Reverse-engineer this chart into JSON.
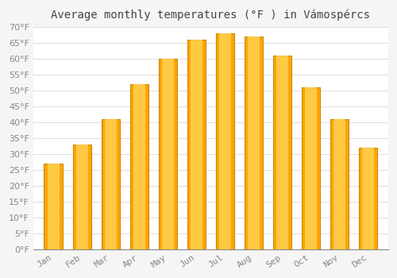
{
  "title": "Average monthly temperatures (°F ) in Vámospércs",
  "months": [
    "Jan",
    "Feb",
    "Mar",
    "Apr",
    "May",
    "Jun",
    "Jul",
    "Aug",
    "Sep",
    "Oct",
    "Nov",
    "Dec"
  ],
  "values": [
    27,
    33,
    41,
    52,
    60,
    66,
    68,
    67,
    61,
    51,
    41,
    32
  ],
  "bar_color_main": "#FFA500",
  "bar_color_light": "#FFD050",
  "bar_edge_color": "#CC8800",
  "background_color": "#f5f5f5",
  "plot_background": "#ffffff",
  "grid_color": "#dddddd",
  "ylim": [
    0,
    70
  ],
  "ytick_step": 5,
  "title_fontsize": 10,
  "tick_fontsize": 8,
  "tick_color": "#888888",
  "bar_width": 0.65
}
